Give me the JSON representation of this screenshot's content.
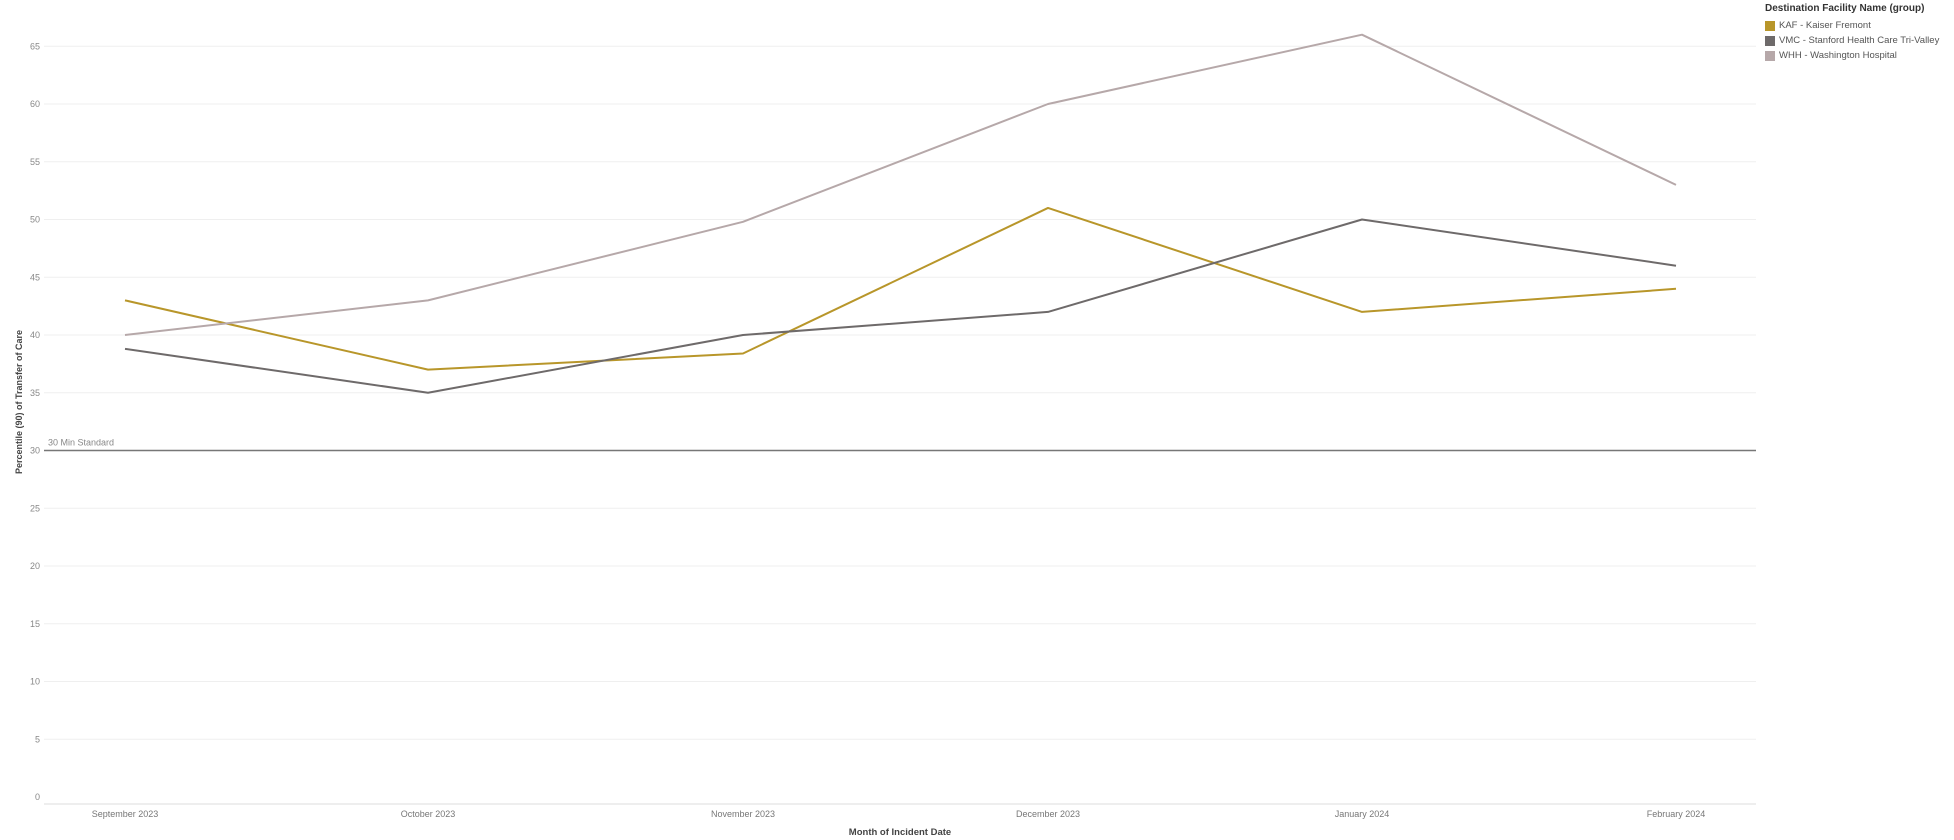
{
  "chart_data": {
    "type": "line",
    "xlabel": "Month of Incident Date",
    "ylabel": "Percentile (90) of Transfer of Care",
    "categories": [
      "September 2023",
      "October 2023",
      "November 2023",
      "December 2023",
      "January 2024",
      "February 2024"
    ],
    "ylim": [
      0,
      68
    ],
    "yticks": [
      0,
      5,
      10,
      15,
      20,
      25,
      30,
      35,
      40,
      45,
      50,
      55,
      60,
      65
    ],
    "grid": true,
    "legend_position": "top-right",
    "reference_line": {
      "value": 30,
      "label": "30 Min Standard",
      "color": "#777777"
    },
    "series": [
      {
        "name": "KAF - Kaiser Fremont",
        "color": "#b8962a",
        "values": [
          43,
          37,
          38.4,
          51,
          42,
          44
        ]
      },
      {
        "name": "VMC - Stanford Health Care Tri-Valley",
        "color": "#6e6a6a",
        "values": [
          38.8,
          35,
          40,
          42,
          50,
          46
        ]
      },
      {
        "name": "WHH - Washington Hospital",
        "color": "#b6a8a9",
        "values": [
          40,
          43,
          49.8,
          60,
          66,
          53
        ]
      }
    ]
  },
  "legend": {
    "title": "Destination Facility Name (group)"
  }
}
